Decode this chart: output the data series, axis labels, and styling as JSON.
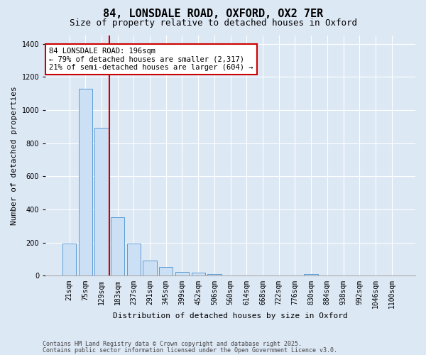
{
  "title_line1": "84, LONSDALE ROAD, OXFORD, OX2 7ER",
  "title_line2": "Size of property relative to detached houses in Oxford",
  "xlabel": "Distribution of detached houses by size in Oxford",
  "ylabel": "Number of detached properties",
  "bar_labels": [
    "21sqm",
    "75sqm",
    "129sqm",
    "183sqm",
    "237sqm",
    "291sqm",
    "345sqm",
    "399sqm",
    "452sqm",
    "506sqm",
    "560sqm",
    "614sqm",
    "668sqm",
    "722sqm",
    "776sqm",
    "830sqm",
    "884sqm",
    "938sqm",
    "992sqm",
    "1046sqm",
    "1100sqm"
  ],
  "bar_values": [
    195,
    1130,
    895,
    355,
    195,
    90,
    52,
    22,
    20,
    12,
    0,
    0,
    0,
    0,
    0,
    12,
    0,
    0,
    0,
    0,
    0
  ],
  "bar_color": "#cce0f5",
  "bar_edge_color": "#5b9bd5",
  "vline_x_index": 3,
  "vline_color": "#cc0000",
  "annotation_text": "84 LONSDALE ROAD: 196sqm\n← 79% of detached houses are smaller (2,317)\n21% of semi-detached houses are larger (604) →",
  "annotation_box_color": "white",
  "annotation_box_edge": "#cc0000",
  "ylim": [
    0,
    1450
  ],
  "bg_color": "#dde8f5",
  "fig_bg_color": "#dde8f5",
  "grid_color": "#ffffff",
  "footer_line1": "Contains HM Land Registry data © Crown copyright and database right 2025.",
  "footer_line2": "Contains public sector information licensed under the Open Government Licence v3.0.",
  "title_fontsize": 11,
  "subtitle_fontsize": 9,
  "tick_fontsize": 7,
  "ylabel_fontsize": 8,
  "xlabel_fontsize": 8,
  "annotation_fontsize": 7.5,
  "footer_fontsize": 6
}
